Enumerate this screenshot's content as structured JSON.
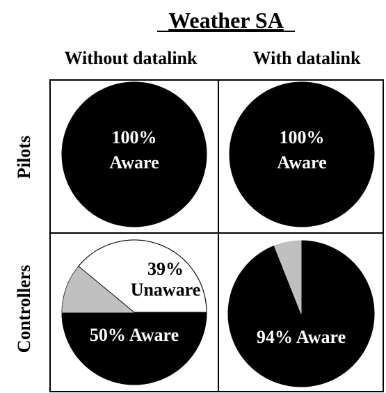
{
  "chart_data": [
    {
      "type": "pie",
      "title": "Weather SA",
      "column": "Without datalink",
      "row": "Pilots",
      "slices": [
        {
          "label": "Aware",
          "value": 100,
          "color": "#000000",
          "text": [
            "100%",
            "Aware"
          ]
        }
      ]
    },
    {
      "type": "pie",
      "title": "Weather SA",
      "column": "With datalink",
      "row": "Pilots",
      "slices": [
        {
          "label": "Aware",
          "value": 100,
          "color": "#000000",
          "text": [
            "100%",
            "Aware"
          ]
        }
      ]
    },
    {
      "type": "pie",
      "title": "Weather SA",
      "column": "Without datalink",
      "row": "Controllers",
      "slices": [
        {
          "label": "Aware",
          "value": 50,
          "color": "#000000",
          "text": [
            "50% Aware"
          ]
        },
        {
          "label": "Unaware",
          "value": 39,
          "color": "#ffffff",
          "text": [
            "39%",
            "Unaware"
          ]
        },
        {
          "label": "",
          "value": 11,
          "color": "#c0c0c0",
          "text": []
        }
      ]
    },
    {
      "type": "pie",
      "title": "Weather SA",
      "column": "With datalink",
      "row": "Controllers",
      "slices": [
        {
          "label": "Aware",
          "value": 94,
          "color": "#000000",
          "text": [
            "94% Aware"
          ]
        },
        {
          "label": "",
          "value": 6,
          "color": "#c0c0c0",
          "text": []
        }
      ]
    }
  ],
  "figure": {
    "title": "Weather SA",
    "columns": [
      "Without datalink",
      "With datalink"
    ],
    "rows": [
      "Pilots",
      "Controllers"
    ]
  }
}
